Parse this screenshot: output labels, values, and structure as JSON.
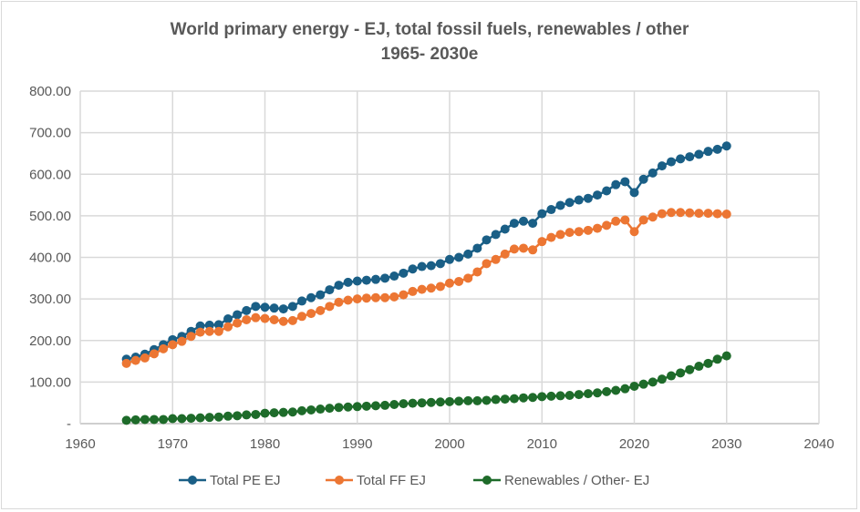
{
  "chart_data": {
    "type": "line",
    "title": [
      "World primary energy - EJ, total fossil fuels, renewables / other",
      "1965- 2030e"
    ],
    "xlabel": "",
    "ylabel": "",
    "xlim": [
      1960,
      2040
    ],
    "ylim": [
      0,
      800
    ],
    "x_ticks": [
      "1960",
      "1970",
      "1980",
      "1990",
      "2000",
      "2010",
      "2020",
      "2030",
      "2040"
    ],
    "y_ticks": [
      "-",
      "100.00",
      "200.00",
      "300.00",
      "400.00",
      "500.00",
      "600.00",
      "700.00",
      "800.00"
    ],
    "grid": true,
    "legend_position": "bottom",
    "x_start": 1965,
    "series": [
      {
        "name": "Total PE EJ",
        "color": "#1a5f86",
        "values": [
          155,
          160,
          167,
          178,
          190,
          202,
          210,
          222,
          235,
          237,
          238,
          252,
          262,
          272,
          282,
          280,
          278,
          276,
          282,
          295,
          303,
          310,
          322,
          333,
          340,
          343,
          345,
          347,
          350,
          355,
          362,
          372,
          378,
          380,
          385,
          395,
          400,
          408,
          422,
          442,
          455,
          468,
          482,
          487,
          482,
          505,
          515,
          525,
          532,
          538,
          542,
          550,
          560,
          575,
          582,
          556,
          588,
          603,
          620,
          630,
          637,
          642,
          648,
          655,
          660,
          668
        ]
      },
      {
        "name": "Total FF EJ",
        "color": "#ec7633",
        "values": [
          145,
          152,
          158,
          168,
          180,
          190,
          198,
          210,
          220,
          222,
          222,
          233,
          242,
          250,
          255,
          253,
          250,
          246,
          248,
          258,
          265,
          272,
          282,
          292,
          297,
          300,
          302,
          303,
          303,
          305,
          310,
          318,
          323,
          326,
          330,
          338,
          342,
          350,
          365,
          385,
          395,
          408,
          420,
          422,
          418,
          438,
          448,
          455,
          460,
          462,
          465,
          470,
          477,
          487,
          490,
          462,
          490,
          497,
          505,
          508,
          508,
          507,
          506,
          506,
          505,
          504
        ]
      },
      {
        "name": "Renewables / Other- EJ",
        "color": "#1e6b2a",
        "values": [
          8,
          9,
          10,
          10,
          10,
          12,
          12,
          13,
          14,
          15,
          16,
          18,
          19,
          21,
          22,
          25,
          26,
          27,
          28,
          31,
          33,
          35,
          37,
          39,
          40,
          41,
          42,
          43,
          44,
          46,
          48,
          49,
          50,
          51,
          52,
          53,
          54,
          55,
          55,
          56,
          58,
          59,
          60,
          62,
          63,
          65,
          66,
          67,
          68,
          70,
          72,
          74,
          77,
          80,
          84,
          90,
          95,
          100,
          107,
          115,
          122,
          130,
          138,
          145,
          155,
          163
        ]
      }
    ]
  }
}
